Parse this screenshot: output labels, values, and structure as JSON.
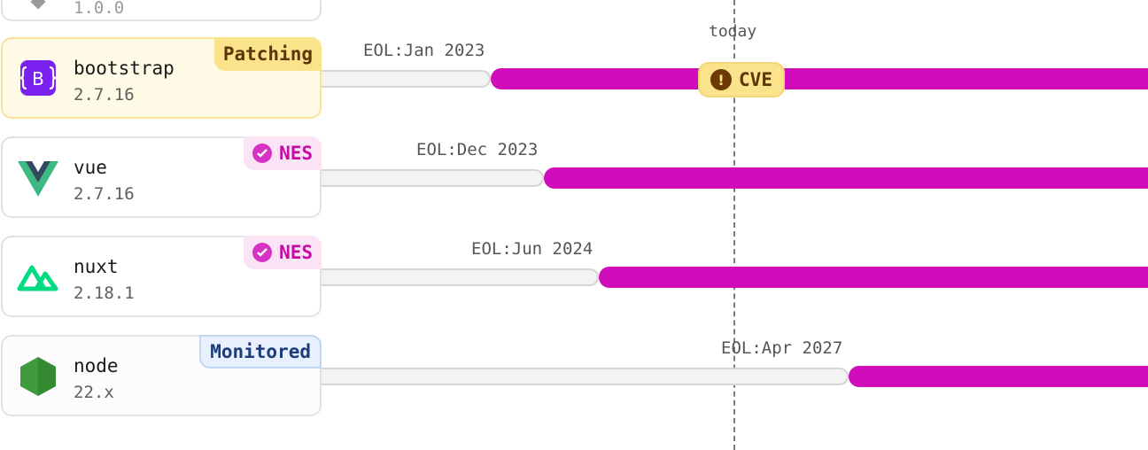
{
  "today_label": "today",
  "cve_badge": "CVE",
  "top_partial_version": "1.0.0",
  "packages": [
    {
      "name": "bootstrap",
      "version": "2.7.16",
      "badge": "Patching",
      "eol": "EOL:Jan 2023"
    },
    {
      "name": "vue",
      "version": "2.7.16",
      "badge": "NES",
      "eol": "EOL:Dec 2023"
    },
    {
      "name": "nuxt",
      "version": "2.18.1",
      "badge": "NES",
      "eol": "EOL:Jun 2024"
    },
    {
      "name": "node",
      "version": "22.x",
      "badge": "Monitored",
      "eol": "EOL:Apr 2027"
    }
  ],
  "colors": {
    "eol_bar": "#d00dbb",
    "patching_badge": "#fbe38c",
    "nes_badge": "#fbe3f6",
    "monitored_badge": "#e7f0fc"
  },
  "icons": {
    "bootstrap": "bootstrap-logo-icon",
    "vue": "vue-logo-icon",
    "nuxt": "nuxt-logo-icon",
    "node": "node-logo-icon"
  }
}
